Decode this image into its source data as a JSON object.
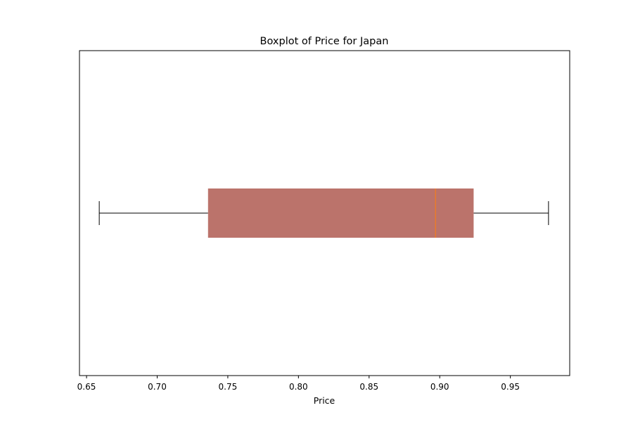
{
  "chart_data": {
    "type": "boxplot",
    "orientation": "horizontal",
    "title": "Boxplot of Price for Japan",
    "xlabel": "Price",
    "ylabel": "",
    "xlim": [
      0.645,
      0.992
    ],
    "xticks": [
      0.65,
      0.7,
      0.75,
      0.8,
      0.85,
      0.9,
      0.95
    ],
    "xtick_labels": [
      "0.65",
      "0.70",
      "0.75",
      "0.80",
      "0.85",
      "0.90",
      "0.95"
    ],
    "grid": false,
    "box": {
      "whisker_low": 0.659,
      "q1": 0.736,
      "median": 0.897,
      "q3": 0.924,
      "whisker_high": 0.977
    },
    "colors": {
      "box_fill": "#bb736b",
      "median": "#ff7f0e",
      "whisker": "#000000",
      "frame": "#000000"
    }
  }
}
